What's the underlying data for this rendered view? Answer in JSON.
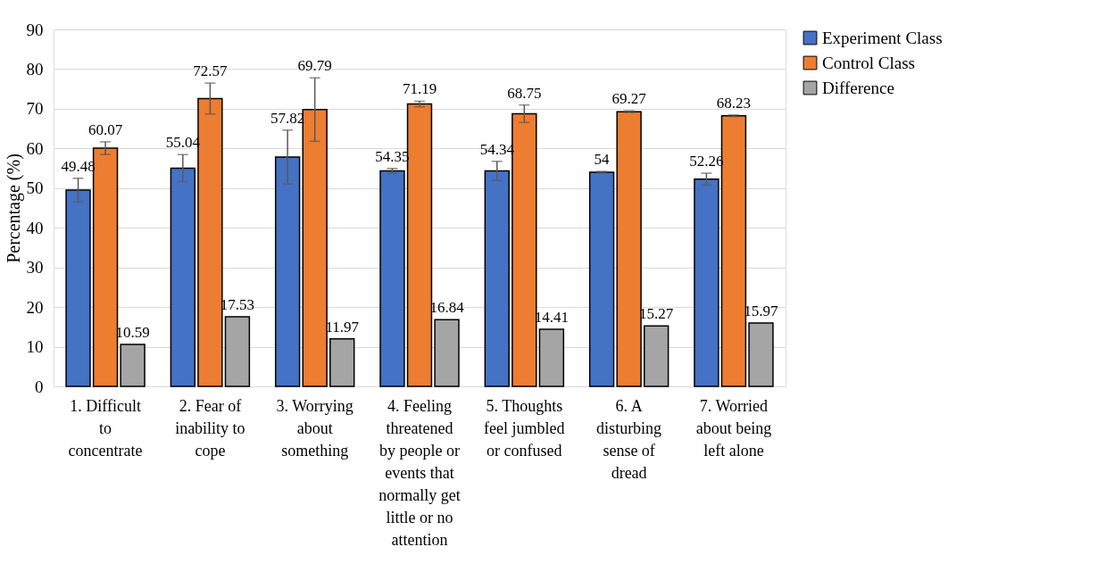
{
  "chart_data": {
    "type": "bar",
    "ylabel": "Percentage (%)",
    "categories": [
      "1. Difficult to concentrate",
      "2. Fear of inability to cope",
      "3. Worrying about something",
      "4. Feeling threatened by people or events that normally get little or no attention",
      "5. Thoughts feel jumbled or confused",
      "6. A disturbing sense of dread",
      "7. Worried about being left alone"
    ],
    "series": [
      {
        "name": "Experiment Class",
        "color": "#4472c4",
        "values": [
          49.48,
          55.04,
          57.82,
          54.35,
          54.34,
          54,
          52.26
        ],
        "errors": [
          3.0,
          3.4,
          6.8,
          0.6,
          2.4,
          0.2,
          1.5
        ]
      },
      {
        "name": "Control Class",
        "color": "#ed7d31",
        "values": [
          60.07,
          72.57,
          69.79,
          71.19,
          68.75,
          69.27,
          68.23
        ],
        "errors": [
          1.6,
          3.9,
          8.0,
          0.7,
          2.2,
          0.2,
          0.2
        ]
      },
      {
        "name": "Difference",
        "color": "#a5a5a5",
        "values": [
          10.59,
          17.53,
          11.97,
          16.84,
          14.41,
          15.27,
          15.97
        ]
      }
    ],
    "ylim": [
      0,
      90
    ],
    "yticks": [
      0,
      10,
      20,
      30,
      40,
      50,
      60,
      70,
      80,
      90
    ],
    "grid": "y",
    "legend": "right",
    "data_labels": true
  }
}
